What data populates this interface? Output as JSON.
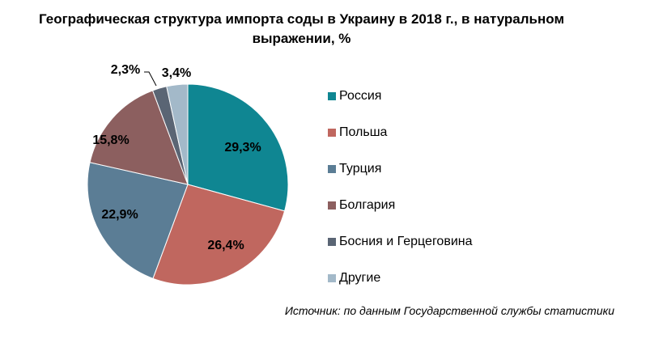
{
  "title_lines": [
    "Географическая структура импорта соды в Украину в 2018 г., в натуральном",
    "выражении, %"
  ],
  "source": "Источник: по данным Государственной службы статистики",
  "chart_data": {
    "type": "pie",
    "title": "Географическая структура импорта соды в Украину в 2018 г., в натуральном выражении, %",
    "categories": [
      "Россия",
      "Польша",
      "Турция",
      "Болгария",
      "Босния и Герцеговина",
      "Другие"
    ],
    "values": [
      29.3,
      26.4,
      22.9,
      15.8,
      2.3,
      3.4
    ],
    "labels": [
      "29,3%",
      "26,4%",
      "22,9%",
      "15,8%",
      "2,3%",
      "3,4%"
    ],
    "colors": [
      "#0f8692",
      "#c0675f",
      "#5b7d95",
      "#8c5f5f",
      "#5a6574",
      "#a3b9c9"
    ],
    "legend_position": "right"
  }
}
